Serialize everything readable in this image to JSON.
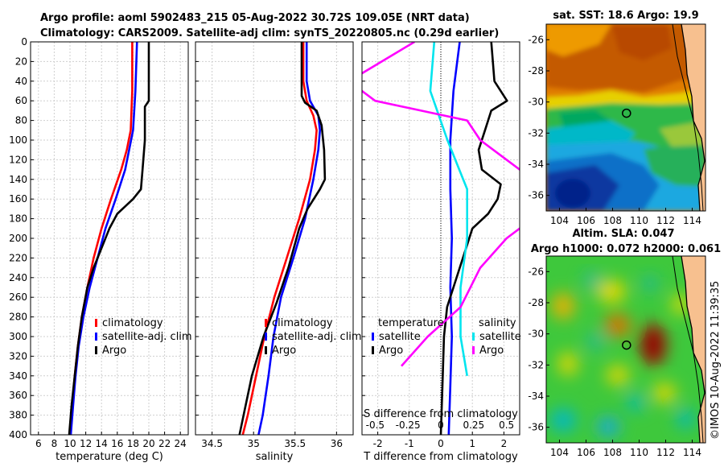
{
  "header": {
    "line1": "Argo profile: aoml 5902483_215 05-Aug-2022 30.72S 109.05E (NRT data)",
    "line2": "Climatology: CARS2009. Satellite-adj clim: synTS_20220805.nc (0.29d earlier)"
  },
  "colors": {
    "climatology": "#ff0000",
    "satellite": "#0000ff",
    "argo": "#000000",
    "sat_diff": "#00e5ee",
    "argo_sal_diff": "#ff00ff",
    "land": "#f7c08f"
  },
  "chart_data": [
    {
      "id": "temperature",
      "type": "line",
      "xlabel": "temperature (deg C)",
      "ylabel": "",
      "xlim": [
        5,
        25
      ],
      "ylim": [
        400,
        0
      ],
      "xticks": [
        6,
        8,
        10,
        12,
        14,
        16,
        18,
        20,
        22,
        24
      ],
      "yticks": [
        0,
        20,
        40,
        60,
        80,
        100,
        120,
        140,
        160,
        180,
        200,
        220,
        240,
        260,
        280,
        300,
        320,
        340,
        360,
        380,
        400
      ],
      "legend": [
        "climatology",
        "satellite-adj. clim",
        "Argo"
      ],
      "series": [
        {
          "name": "climatology",
          "color": "#ff0000",
          "points": [
            [
              17.9,
              0
            ],
            [
              17.9,
              50
            ],
            [
              17.7,
              90
            ],
            [
              17.2,
              110
            ],
            [
              16.5,
              130
            ],
            [
              15.2,
              160
            ],
            [
              14,
              190
            ],
            [
              13,
              220
            ],
            [
              12.2,
              250
            ],
            [
              11.5,
              280
            ],
            [
              11,
              310
            ],
            [
              10.6,
              340
            ],
            [
              10.3,
              370
            ],
            [
              10,
              400
            ]
          ]
        },
        {
          "name": "satellite-adj. clim",
          "color": "#0000ff",
          "points": [
            [
              18.5,
              0
            ],
            [
              18.3,
              50
            ],
            [
              18,
              90
            ],
            [
              17.5,
              110
            ],
            [
              17,
              130
            ],
            [
              15.8,
              160
            ],
            [
              14.5,
              190
            ],
            [
              13.5,
              220
            ],
            [
              12.5,
              250
            ],
            [
              11.7,
              280
            ],
            [
              11.1,
              310
            ],
            [
              10.7,
              340
            ],
            [
              10.4,
              370
            ],
            [
              10.1,
              400
            ]
          ]
        },
        {
          "name": "Argo",
          "color": "#000000",
          "points": [
            [
              20,
              0
            ],
            [
              20,
              60
            ],
            [
              19.5,
              66
            ],
            [
              19.5,
              100
            ],
            [
              19.2,
              130
            ],
            [
              19,
              150
            ],
            [
              18,
              160
            ],
            [
              16,
              175
            ],
            [
              15,
              190
            ],
            [
              14,
              210
            ],
            [
              13,
              230
            ],
            [
              12.2,
              250
            ],
            [
              11.5,
              280
            ],
            [
              11,
              310
            ],
            [
              10.6,
              340
            ],
            [
              10.2,
              370
            ],
            [
              9.9,
              400
            ]
          ]
        }
      ]
    },
    {
      "id": "salinity",
      "type": "line",
      "xlabel": "salinity",
      "ylabel": "",
      "xlim": [
        34.3,
        36.2
      ],
      "ylim": [
        400,
        0
      ],
      "xticks": [
        34.5,
        35,
        35.5,
        36
      ],
      "legend": [
        "climatology",
        "satellite-adj. clim",
        "Argo"
      ],
      "series": [
        {
          "name": "climatology",
          "color": "#ff0000",
          "points": [
            [
              35.6,
              0
            ],
            [
              35.6,
              40
            ],
            [
              35.64,
              60
            ],
            [
              35.72,
              75
            ],
            [
              35.76,
              90
            ],
            [
              35.74,
              110
            ],
            [
              35.68,
              140
            ],
            [
              35.55,
              180
            ],
            [
              35.4,
              220
            ],
            [
              35.25,
              260
            ],
            [
              35.13,
              300
            ],
            [
              35.03,
              340
            ],
            [
              34.93,
              380
            ],
            [
              34.87,
              400
            ]
          ]
        },
        {
          "name": "satellite-adj. clim",
          "color": "#0000ff",
          "points": [
            [
              35.64,
              0
            ],
            [
              35.64,
              40
            ],
            [
              35.68,
              60
            ],
            [
              35.78,
              75
            ],
            [
              35.8,
              90
            ],
            [
              35.78,
              110
            ],
            [
              35.72,
              140
            ],
            [
              35.62,
              180
            ],
            [
              35.48,
              220
            ],
            [
              35.33,
              260
            ],
            [
              35.24,
              300
            ],
            [
              35.18,
              340
            ],
            [
              35.11,
              380
            ],
            [
              35.06,
              400
            ]
          ]
        },
        {
          "name": "Argo",
          "color": "#000000",
          "points": [
            [
              35.58,
              0
            ],
            [
              35.58,
              55
            ],
            [
              35.62,
              62
            ],
            [
              35.76,
              70
            ],
            [
              35.82,
              85
            ],
            [
              35.85,
              110
            ],
            [
              35.86,
              140
            ],
            [
              35.8,
              150
            ],
            [
              35.65,
              170
            ],
            [
              35.55,
              190
            ],
            [
              35.42,
              230
            ],
            [
              35.28,
              265
            ],
            [
              35.12,
              300
            ],
            [
              34.98,
              340
            ],
            [
              34.88,
              380
            ],
            [
              34.83,
              400
            ]
          ]
        }
      ]
    },
    {
      "id": "difference",
      "type": "line",
      "xlabel": "T difference from climatology",
      "x2label": "S difference from climatology",
      "xlim": [
        -2.5,
        2.5
      ],
      "ylim": [
        400,
        0
      ],
      "xticks": [
        -2,
        -1,
        0,
        1,
        2
      ],
      "x2ticks": [
        -0.5,
        -0.25,
        0,
        0.25,
        0.5
      ],
      "legend_temperature_title": "temperature",
      "legend_salinity_title": "salinity",
      "legend_temperature": [
        "satellite",
        "Argo"
      ],
      "legend_salinity": [
        "satellite",
        "Argo"
      ],
      "series": [
        {
          "name": "T satellite",
          "color": "#0000ff",
          "points": [
            [
              0.6,
              0
            ],
            [
              0.4,
              50
            ],
            [
              0.3,
              100
            ],
            [
              0.3,
              150
            ],
            [
              0.35,
              200
            ],
            [
              0.3,
              250
            ],
            [
              0.35,
              300
            ],
            [
              0.3,
              350
            ],
            [
              0.25,
              400
            ]
          ]
        },
        {
          "name": "T Argo",
          "color": "#000000",
          "points": [
            [
              1.6,
              0
            ],
            [
              1.7,
              40
            ],
            [
              2.1,
              60
            ],
            [
              1.6,
              70
            ],
            [
              1.4,
              90
            ],
            [
              1.2,
              110
            ],
            [
              1.3,
              130
            ],
            [
              1.9,
              145
            ],
            [
              1.8,
              160
            ],
            [
              1.5,
              175
            ],
            [
              1.0,
              190
            ],
            [
              0.6,
              230
            ],
            [
              0.2,
              270
            ],
            [
              0.1,
              300
            ],
            [
              0.05,
              350
            ],
            [
              0,
              400
            ]
          ]
        },
        {
          "name": "S satellite",
          "color": "#00e5ee",
          "points": [
            [
              -0.05,
              0
            ],
            [
              -0.08,
              50
            ],
            [
              0.05,
              100
            ],
            [
              0.2,
              150
            ],
            [
              0.2,
              200
            ],
            [
              0.15,
              250
            ],
            [
              0.15,
              300
            ],
            [
              0.2,
              340
            ]
          ]
        },
        {
          "name": "S Argo",
          "color": "#ff00ff",
          "points": [
            [
              -0.2,
              0
            ],
            [
              -0.7,
              40
            ],
            [
              -0.5,
              60
            ],
            [
              0.2,
              80
            ],
            [
              0.3,
              100
            ],
            [
              0.4,
              110
            ],
            [
              0.6,
              130
            ],
            [
              0.9,
              145
            ],
            [
              0.9,
              160
            ],
            [
              0.7,
              180
            ],
            [
              0.5,
              200
            ],
            [
              0.3,
              230
            ],
            [
              0.15,
              270
            ],
            [
              -0.1,
              300
            ],
            [
              -0.3,
              330
            ]
          ]
        }
      ]
    },
    {
      "id": "sst_map",
      "type": "heatmap",
      "title": "sat. SST: 18.6 Argo: 19.9",
      "xlim": [
        103,
        115
      ],
      "ylim": [
        -37,
        -25
      ],
      "xticks": [
        104,
        106,
        108,
        110,
        112,
        114
      ],
      "yticks": [
        -26,
        -28,
        -30,
        -32,
        -34,
        -36
      ],
      "marker": {
        "lon": 109.05,
        "lat": -30.72
      }
    },
    {
      "id": "sla_map",
      "type": "heatmap",
      "title": "Altim. SLA: 0.047",
      "subtitle": "Argo h1000: 0.072 h2000: 0.061",
      "xlim": [
        103,
        115
      ],
      "ylim": [
        -37,
        -25
      ],
      "xticks": [
        104,
        106,
        108,
        110,
        112,
        114
      ],
      "yticks": [
        -26,
        -28,
        -30,
        -32,
        -34,
        -36
      ],
      "marker": {
        "lon": 109.05,
        "lat": -30.72
      }
    }
  ],
  "watermark": "©IMOS 10-Aug-2022 11:39:35"
}
